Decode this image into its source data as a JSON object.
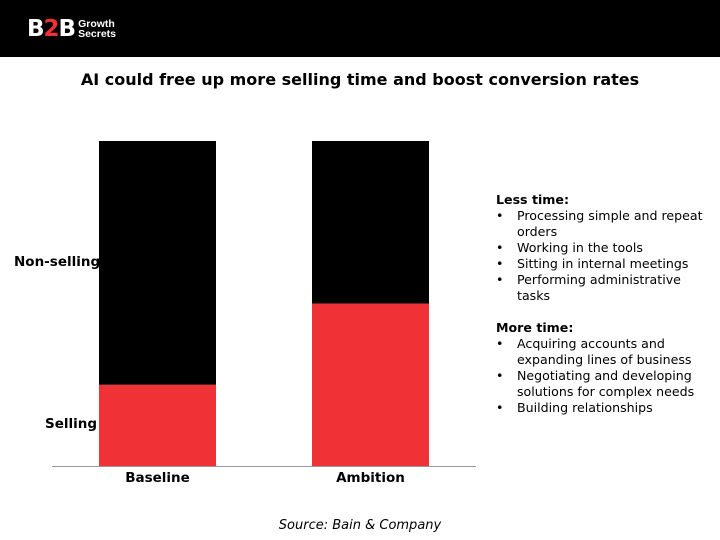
{
  "brand": {
    "logo_mark_left": "B",
    "logo_mark_mid": "2",
    "logo_mark_right": "B",
    "logo_word_1": "Growth",
    "logo_word_2": "Secrets"
  },
  "chart_data": {
    "type": "bar",
    "stacked": true,
    "title": "AI could free up more selling time and boost conversion rates",
    "categories": [
      "Baseline",
      "Ambition"
    ],
    "series": [
      {
        "name": "Selling",
        "color": "#f03236",
        "values": [
          25,
          50
        ]
      },
      {
        "name": "Non-selling",
        "color": "#000000",
        "values": [
          75,
          50
        ]
      }
    ],
    "ylim": [
      0,
      100
    ],
    "y_category_labels": [
      "Non-selling",
      "Selling"
    ],
    "source": "Source: Bain & Company"
  },
  "notes": {
    "less_title": "Less time:",
    "less_items": [
      "Processing simple and repeat orders",
      "Working in the tools",
      "Sitting in internal meetings",
      "Performing administrative tasks"
    ],
    "more_title": "More time:",
    "more_items": [
      "Acquiring accounts and expanding lines of business",
      "Negotiating and developing solutions for complex needs",
      "Building relationships"
    ]
  }
}
